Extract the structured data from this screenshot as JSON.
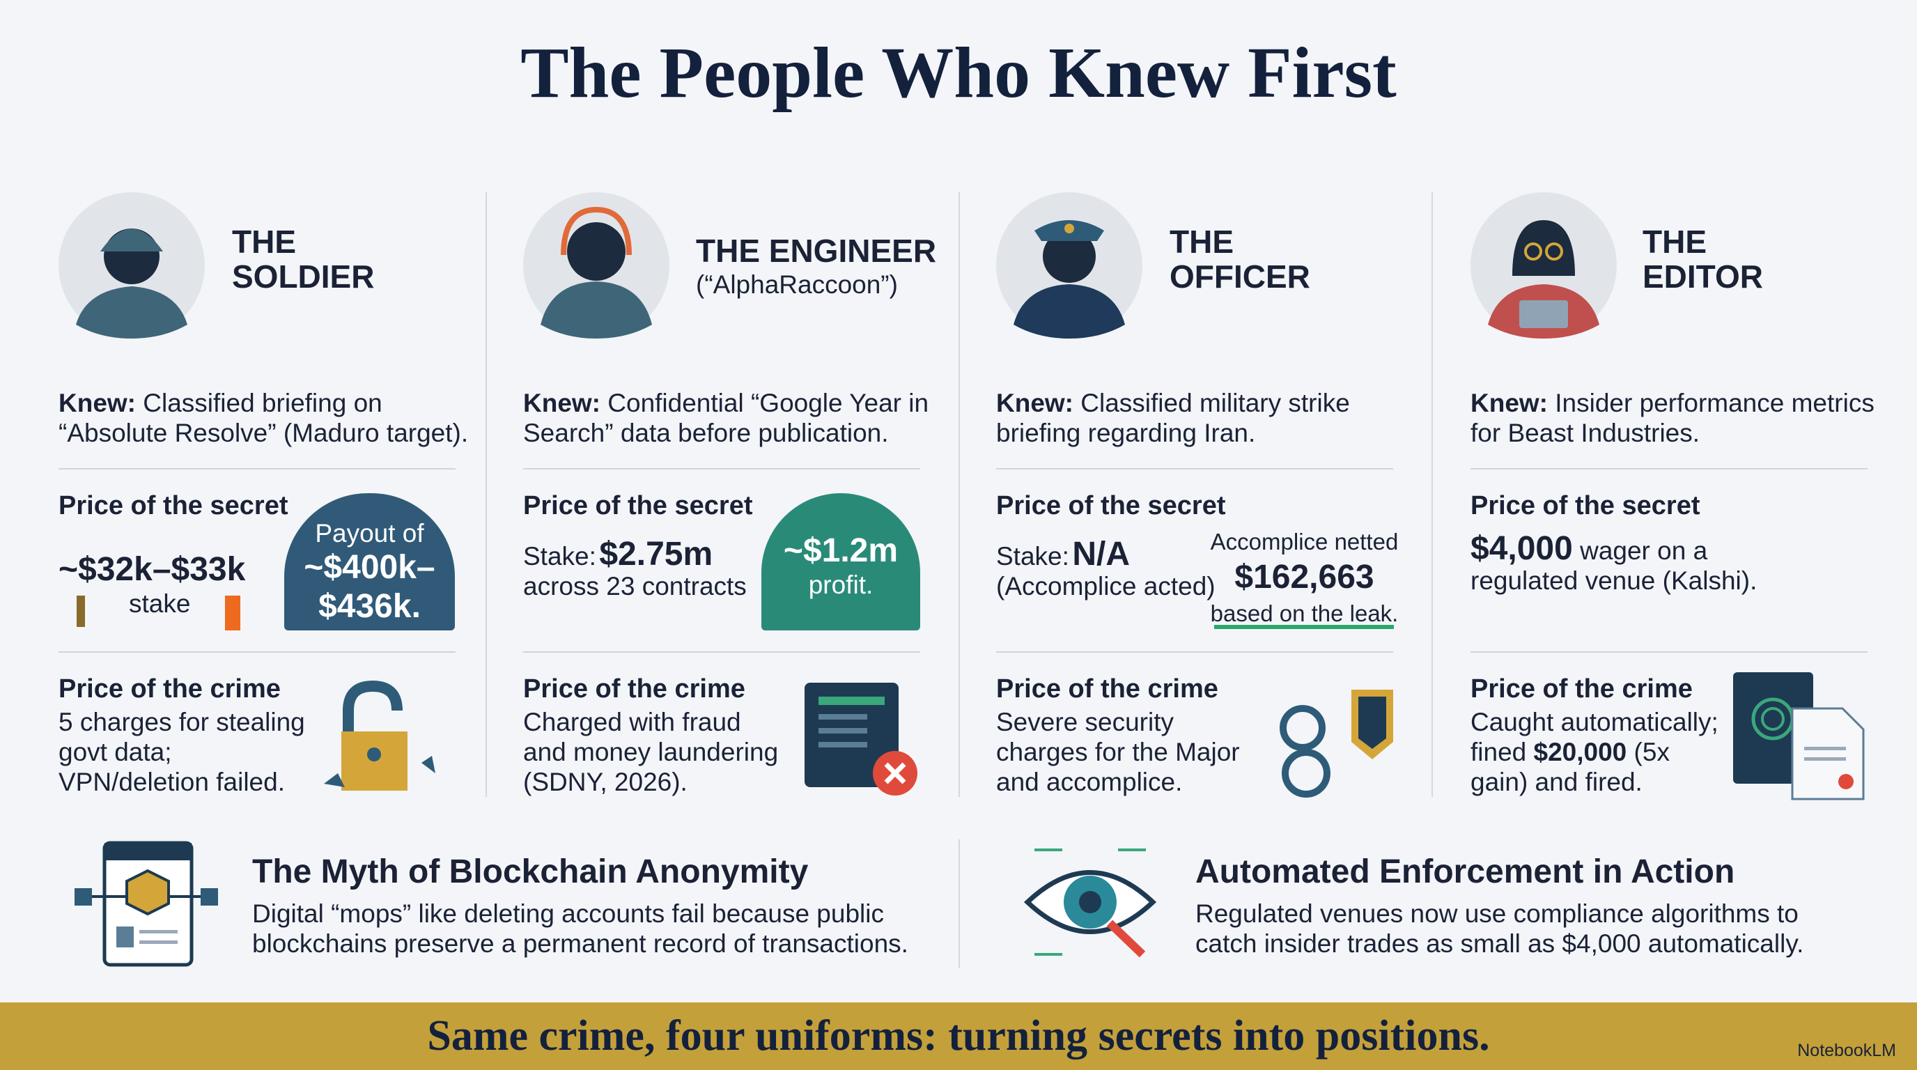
{
  "title": "The People Who Knew First",
  "profiles": [
    {
      "role": [
        "THE",
        "SOLDIER"
      ],
      "knew_label": "Knew:",
      "knew_text": "Classified briefing on “Absolute Resolve” (Maduro target).",
      "secret_heading": "Price of the secret",
      "secret": {
        "amount": "~$32k–$33k",
        "caption": "stake",
        "badge_label": "Payout of",
        "badge_value": "~$400k–$436k."
      },
      "crime_heading": "Price of the crime",
      "crime_text": "5 charges for stealing govt data; VPN/deletion failed."
    },
    {
      "role": [
        "THE ENGINEER"
      ],
      "alias": "(“AlphaRaccoon”)",
      "knew_label": "Knew:",
      "knew_text": "Confidential “Google Year in Search” data before publication.",
      "secret_heading": "Price of the secret",
      "secret": {
        "stake_label": "Stake:",
        "stake_value": "$2.75m",
        "stake_note": "across 23 contracts",
        "badge_value": "~$1.2m",
        "badge_label": "profit."
      },
      "crime_heading": "Price of the crime",
      "crime_text": "Charged with fraud and money laundering (SDNY, 2026)."
    },
    {
      "role": [
        "THE",
        "OFFICER"
      ],
      "knew_label": "Knew:",
      "knew_text": "Classified military strike briefing regarding Iran.",
      "secret_heading": "Price of the secret",
      "secret": {
        "stake_label": "Stake:",
        "stake_value": "N/A",
        "stake_note": "(Accomplice acted)",
        "side_label": "Accomplice netted",
        "side_value": "$162,663",
        "side_note": "based on the leak."
      },
      "crime_heading": "Price of the crime",
      "crime_text": "Severe security charges for the Major and accomplice."
    },
    {
      "role": [
        "THE",
        "EDITOR"
      ],
      "knew_label": "Knew:",
      "knew_text": "Insider performance metrics for Beast Industries.",
      "secret_heading": "Price of the secret",
      "secret": {
        "amount": "$4,000",
        "note": "wager on a regulated venue (Kalshi)."
      },
      "crime_heading": "Price of the crime",
      "crime_parts": [
        "Caught automatically; fined ",
        "$20,000",
        " (5x gain) and fired."
      ]
    }
  ],
  "features": [
    {
      "title": "The Myth of Blockchain Anonymity",
      "text": "Digital “mops” like deleting accounts fail because public blockchains preserve a permanent record of transactions."
    },
    {
      "title": "Automated Enforcement in Action",
      "text": "Regulated venues now use compliance algorithms to catch insider trades as small as $4,000 automatically."
    }
  ],
  "banner": "Same crime, four uniforms: turning secrets into positions.",
  "brand": "NotebookLM"
}
